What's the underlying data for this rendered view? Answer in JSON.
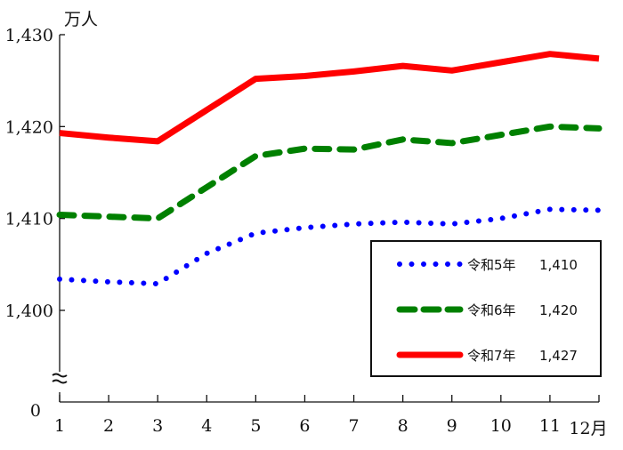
{
  "chart_data": {
    "type": "line",
    "title": "",
    "ylabel": "万人",
    "xlabel": "月",
    "x": [
      1,
      2,
      3,
      4,
      5,
      6,
      7,
      8,
      9,
      10,
      11,
      12
    ],
    "x_tick_labels": [
      "1",
      "2",
      "3",
      "4",
      "5",
      "6",
      "7",
      "8",
      "9",
      "10",
      "11",
      "12月"
    ],
    "y_ticks": [
      1400,
      1410,
      1420,
      1430
    ],
    "y_tick_labels": [
      "1,400",
      "1,410",
      "1,420",
      "1,430"
    ],
    "y_zero_label": "0",
    "axis_break": true,
    "ylim": [
      1395,
      1430
    ],
    "legend_placement": "bottom-right",
    "series": [
      {
        "name": "令和5年",
        "legend_value": "1,410",
        "color": "#0000ff",
        "style": "dotted",
        "values": [
          1403.4,
          1403.1,
          1402.9,
          1406.2,
          1408.4,
          1409.0,
          1409.4,
          1409.6,
          1409.4,
          1410.0,
          1411.0,
          1410.9
        ]
      },
      {
        "name": "令和6年",
        "legend_value": "1,420",
        "color": "#008000",
        "style": "dashed",
        "values": [
          1410.4,
          1410.2,
          1410.0,
          1413.4,
          1416.8,
          1417.6,
          1417.5,
          1418.6,
          1418.2,
          1419.1,
          1420.0,
          1419.8
        ]
      },
      {
        "name": "令和7年",
        "legend_value": "1,427",
        "color": "#ff0000",
        "style": "solid",
        "values": [
          1419.3,
          1418.8,
          1418.4,
          1421.8,
          1425.2,
          1425.5,
          1426.0,
          1426.6,
          1426.1,
          1427.0,
          1427.9,
          1427.4
        ]
      }
    ]
  }
}
